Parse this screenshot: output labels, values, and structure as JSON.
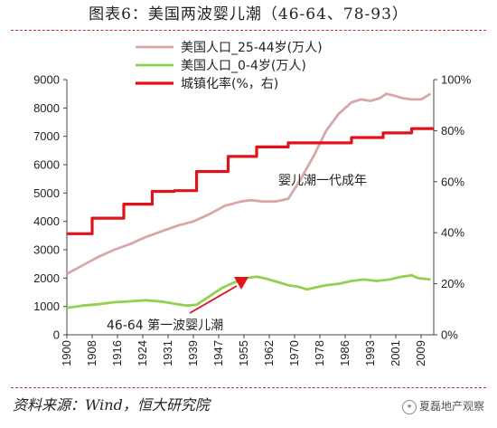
{
  "title": "图表6：美国两波婴儿潮（46-64、78-93）",
  "source": "资料来源：Wind，恒大研究院",
  "watermark": "夏磊地产观察",
  "chart_data": {
    "type": "line",
    "title": "图表6：美国两波婴儿潮（46-64、78-93）",
    "x_tick_labels": [
      "1900",
      "1908",
      "1916",
      "1924",
      "1931",
      "1939",
      "1947",
      "1955",
      "1962",
      "1970",
      "1978",
      "1986",
      "1993",
      "2001",
      "2009"
    ],
    "xlim": [
      1900,
      2016
    ],
    "y_left": {
      "lim": [
        0,
        9000
      ],
      "ticks": [
        "0",
        "1000",
        "2000",
        "3000",
        "4000",
        "5000",
        "6000",
        "7000",
        "8000",
        "9000"
      ]
    },
    "y_right": {
      "lim": [
        0,
        100
      ],
      "ticks": [
        "0%",
        "20%",
        "40%",
        "60%",
        "80%",
        "100%"
      ]
    },
    "legend_position": "top-left",
    "series": [
      {
        "name": "美国人口_25-44岁(万人)",
        "axis": "left",
        "color": "#d9a7a7",
        "x": [
          1900,
          1905,
          1910,
          1915,
          1920,
          1925,
          1930,
          1935,
          1940,
          1945,
          1950,
          1955,
          1958,
          1962,
          1966,
          1970,
          1974,
          1978,
          1982,
          1986,
          1990,
          1993,
          1996,
          1999,
          2001,
          2003,
          2006,
          2009,
          2012,
          2015
        ],
        "y": [
          2150,
          2450,
          2750,
          3000,
          3200,
          3450,
          3650,
          3850,
          4000,
          4250,
          4550,
          4700,
          4750,
          4700,
          4700,
          4800,
          5500,
          6300,
          7200,
          7800,
          8200,
          8300,
          8250,
          8350,
          8500,
          8450,
          8350,
          8300,
          8300,
          8500
        ]
      },
      {
        "name": "美国人口_0-4岁(万人)",
        "axis": "left",
        "color": "#92d050",
        "x": [
          1900,
          1905,
          1910,
          1915,
          1920,
          1925,
          1930,
          1935,
          1938,
          1941,
          1945,
          1949,
          1953,
          1957,
          1960,
          1963,
          1967,
          1970,
          1973,
          1976,
          1979,
          1982,
          1986,
          1990,
          1994,
          1998,
          2002,
          2006,
          2009,
          2011,
          2015
        ],
        "y": [
          950,
          1030,
          1080,
          1150,
          1180,
          1220,
          1170,
          1080,
          1030,
          1060,
          1350,
          1650,
          1850,
          2000,
          2050,
          1980,
          1850,
          1750,
          1700,
          1600,
          1680,
          1750,
          1800,
          1900,
          1950,
          1900,
          1950,
          2050,
          2100,
          2000,
          1950
        ]
      },
      {
        "name": "城镇化率(%，右)",
        "axis": "right",
        "color": "#e0131a",
        "x": [
          1900,
          1908,
          1908,
          1918,
          1918,
          1927,
          1927,
          1934,
          1934,
          1941,
          1941,
          1951,
          1951,
          1960,
          1960,
          1970,
          1970,
          1990,
          1990,
          2000,
          2000,
          2009,
          2009,
          2016
        ],
        "y": [
          39.6,
          39.6,
          45.7,
          45.7,
          51.2,
          51.2,
          56.2,
          56.2,
          56.5,
          56.5,
          64.0,
          64.0,
          69.9,
          69.9,
          73.6,
          73.6,
          75.2,
          75.2,
          77.3,
          77.3,
          79.1,
          79.1,
          80.8,
          80.8
        ]
      }
    ],
    "annotations": [
      {
        "text": "婴儿潮一代成年"
      },
      {
        "text": "46-64 第一波婴儿潮"
      }
    ]
  }
}
